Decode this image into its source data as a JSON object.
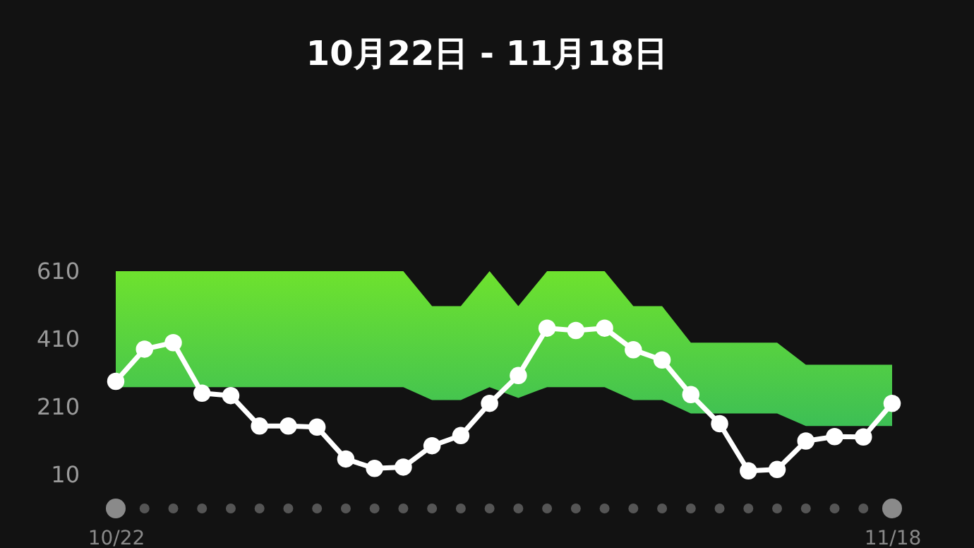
{
  "chart_data": {
    "type": "line",
    "title": "10月22日 - 11月18日",
    "categories": [
      "10/22",
      null,
      null,
      null,
      null,
      null,
      null,
      null,
      null,
      null,
      null,
      null,
      null,
      null,
      null,
      null,
      null,
      null,
      null,
      null,
      null,
      null,
      null,
      null,
      null,
      null,
      null,
      "11/18"
    ],
    "series": [
      {
        "color": "#ffffff",
        "marker": "circle",
        "values": [
          285,
          380,
          399,
          250,
          243,
          153,
          153,
          150,
          56,
          28,
          32,
          95,
          125,
          220,
          302,
          442,
          435,
          442,
          378,
          348,
          246,
          160,
          21,
          25,
          109,
          122,
          121,
          220
        ],
        "lower": [
          268,
          268,
          268,
          268,
          268,
          268,
          268,
          268,
          268,
          268,
          268,
          230,
          230,
          268,
          236,
          268,
          268,
          268,
          230,
          230,
          190,
          190,
          190,
          190,
          153,
          153,
          153,
          153
        ],
        "upper": [
          610,
          610,
          610,
          610,
          610,
          610,
          610,
          610,
          610,
          610,
          610,
          507,
          507,
          610,
          507,
          610,
          610,
          610,
          507,
          507,
          399,
          399,
          399,
          399,
          334,
          334,
          334,
          334
        ]
      }
    ],
    "ylim": [
      10,
      610
    ],
    "yticks": [
      10,
      210,
      410,
      610
    ],
    "grid": false
  }
}
